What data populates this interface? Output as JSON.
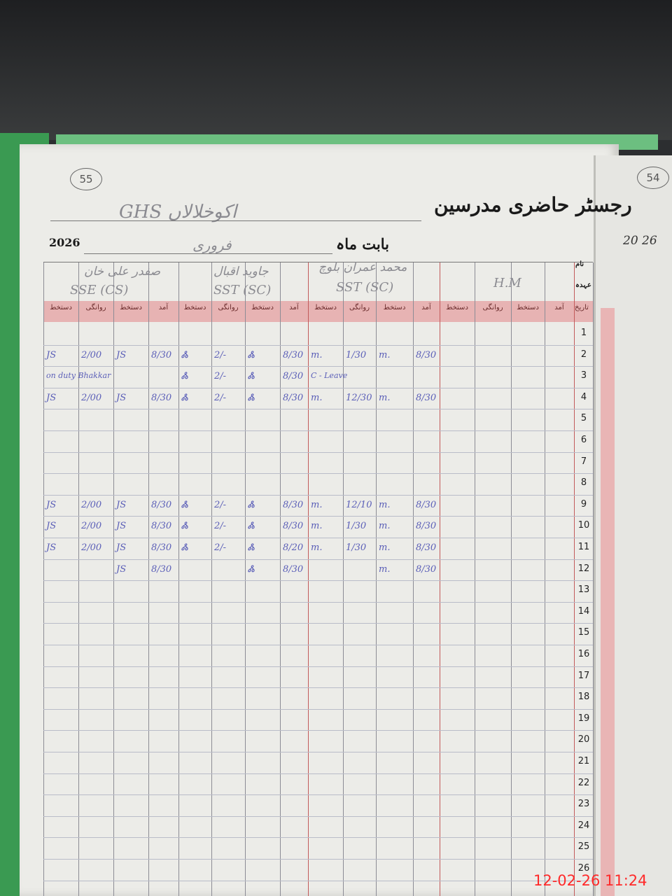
{
  "register": {
    "title": "رجسٹر حاضری مدرسین",
    "school": "GHS اکوخلالاں",
    "year": "2026",
    "month_label": "بابت ماہ",
    "month": "فروری",
    "page_number": "55",
    "right_page_number": "54",
    "right_page_year": "20 26",
    "name_label": "نام",
    "designation_label": "عہدہ",
    "date_label": "تاریخ"
  },
  "teachers": [
    {
      "name": "صفدر علی خان",
      "designation": "SSE (CS)"
    },
    {
      "name": "جاوید اقبال",
      "designation": "SST (SC)"
    },
    {
      "name": "محمد عمران بلوچ",
      "designation": "SST (SC)"
    },
    {
      "name": "",
      "designation": "H.M"
    }
  ],
  "column_headers": [
    "دستخط",
    "روانگی",
    "دستخط",
    "آمد"
  ],
  "row_numbers": [
    "1",
    "2",
    "3",
    "4",
    "5",
    "6",
    "7",
    "8",
    "9",
    "10",
    "11",
    "12",
    "13",
    "14",
    "15",
    "16",
    "17",
    "18",
    "19",
    "20",
    "21",
    "22",
    "23",
    "24",
    "25",
    "26"
  ],
  "entries": [
    {
      "row": 2,
      "cells": [
        "JS",
        "2/00",
        "JS",
        "8/30",
        "Ꮬ",
        "2/-",
        "Ꮬ",
        "8/30",
        "m.",
        "1/30",
        "m.",
        "8/30"
      ]
    },
    {
      "row": 3,
      "cells": [
        "on duty Bhakkar",
        "",
        "",
        "",
        "Ꮬ",
        "2/-",
        "Ꮬ",
        "8/30",
        "C - Leave",
        "",
        "",
        ""
      ]
    },
    {
      "row": 4,
      "cells": [
        "JS",
        "2/00",
        "JS",
        "8/30",
        "Ꮬ",
        "2/-",
        "Ꮬ",
        "8/30",
        "m.",
        "12/30",
        "m.",
        "8/30"
      ]
    },
    {
      "row": 9,
      "cells": [
        "JS",
        "2/00",
        "JS",
        "8/30",
        "Ꮬ",
        "2/-",
        "Ꮬ",
        "8/30",
        "m.",
        "12/10",
        "m.",
        "8/30"
      ]
    },
    {
      "row": 10,
      "cells": [
        "JS",
        "2/00",
        "JS",
        "8/30",
        "Ꮬ",
        "2/-",
        "Ꮬ",
        "8/30",
        "m.",
        "1/30",
        "m.",
        "8/30"
      ]
    },
    {
      "row": 11,
      "cells": [
        "JS",
        "2/00",
        "JS",
        "8/30",
        "Ꮬ",
        "2/-",
        "Ꮬ",
        "8/20",
        "m.",
        "1/30",
        "m.",
        "8/30"
      ]
    },
    {
      "row": 12,
      "cells": [
        "",
        "",
        "JS",
        "8/30",
        "",
        "",
        "Ꮬ",
        "8/30",
        "",
        "",
        "m.",
        "8/30"
      ]
    }
  ],
  "camera_timestamp": "12-02-26  11:24",
  "colors": {
    "ink": "#5b5fb8",
    "header_band": "#e7b3b3",
    "timestamp": "#ff2a2a"
  }
}
